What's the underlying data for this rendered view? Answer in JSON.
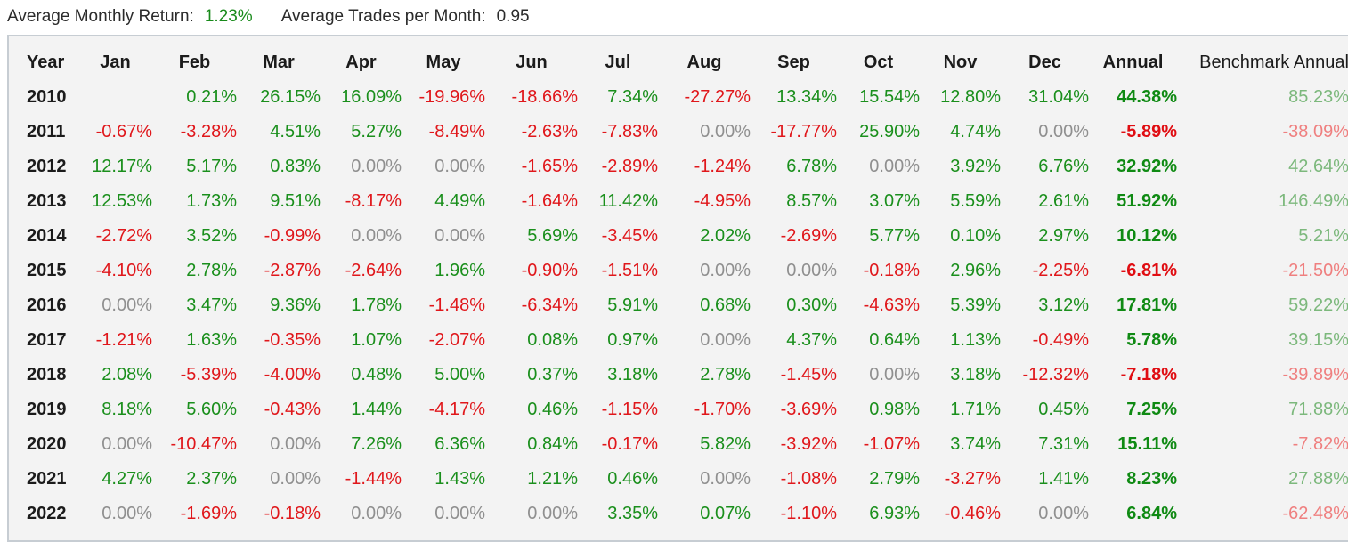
{
  "summary": {
    "avg_monthly_return_label": "Average Monthly Return:",
    "avg_monthly_return_value": "1.23%",
    "avg_trades_label": "Average Trades per Month:",
    "avg_trades_value": "0.95"
  },
  "table": {
    "headers": [
      "Year",
      "Jan",
      "Feb",
      "Mar",
      "Apr",
      "May",
      "Jun",
      "Jul",
      "Aug",
      "Sep",
      "Oct",
      "Nov",
      "Dec",
      "Annual",
      "Benchmark Annual"
    ],
    "rows": [
      {
        "year": "2010",
        "months": [
          "",
          "0.21%",
          "26.15%",
          "16.09%",
          "-19.96%",
          "-18.66%",
          "7.34%",
          "-27.27%",
          "13.34%",
          "15.54%",
          "12.80%",
          "31.04%"
        ],
        "annual": "44.38%",
        "benchmark": "85.23%"
      },
      {
        "year": "2011",
        "months": [
          "-0.67%",
          "-3.28%",
          "4.51%",
          "5.27%",
          "-8.49%",
          "-2.63%",
          "-7.83%",
          "0.00%",
          "-17.77%",
          "25.90%",
          "4.74%",
          "0.00%"
        ],
        "annual": "-5.89%",
        "benchmark": "-38.09%"
      },
      {
        "year": "2012",
        "months": [
          "12.17%",
          "5.17%",
          "0.83%",
          "0.00%",
          "0.00%",
          "-1.65%",
          "-2.89%",
          "-1.24%",
          "6.78%",
          "0.00%",
          "3.92%",
          "6.76%"
        ],
        "annual": "32.92%",
        "benchmark": "42.64%"
      },
      {
        "year": "2013",
        "months": [
          "12.53%",
          "1.73%",
          "9.51%",
          "-8.17%",
          "4.49%",
          "-1.64%",
          "11.42%",
          "-4.95%",
          "8.57%",
          "3.07%",
          "5.59%",
          "2.61%"
        ],
        "annual": "51.92%",
        "benchmark": "146.49%"
      },
      {
        "year": "2014",
        "months": [
          "-2.72%",
          "3.52%",
          "-0.99%",
          "0.00%",
          "0.00%",
          "5.69%",
          "-3.45%",
          "2.02%",
          "-2.69%",
          "5.77%",
          "0.10%",
          "2.97%"
        ],
        "annual": "10.12%",
        "benchmark": "5.21%"
      },
      {
        "year": "2015",
        "months": [
          "-4.10%",
          "2.78%",
          "-2.87%",
          "-2.64%",
          "1.96%",
          "-0.90%",
          "-1.51%",
          "0.00%",
          "0.00%",
          "-0.18%",
          "2.96%",
          "-2.25%"
        ],
        "annual": "-6.81%",
        "benchmark": "-21.50%"
      },
      {
        "year": "2016",
        "months": [
          "0.00%",
          "3.47%",
          "9.36%",
          "1.78%",
          "-1.48%",
          "-6.34%",
          "5.91%",
          "0.68%",
          "0.30%",
          "-4.63%",
          "5.39%",
          "3.12%"
        ],
        "annual": "17.81%",
        "benchmark": "59.22%"
      },
      {
        "year": "2017",
        "months": [
          "-1.21%",
          "1.63%",
          "-0.35%",
          "1.07%",
          "-2.07%",
          "0.08%",
          "0.97%",
          "0.00%",
          "4.37%",
          "0.64%",
          "1.13%",
          "-0.49%"
        ],
        "annual": "5.78%",
        "benchmark": "39.15%"
      },
      {
        "year": "2018",
        "months": [
          "2.08%",
          "-5.39%",
          "-4.00%",
          "0.48%",
          "5.00%",
          "0.37%",
          "3.18%",
          "2.78%",
          "-1.45%",
          "0.00%",
          "3.18%",
          "-12.32%"
        ],
        "annual": "-7.18%",
        "benchmark": "-39.89%"
      },
      {
        "year": "2019",
        "months": [
          "8.18%",
          "5.60%",
          "-0.43%",
          "1.44%",
          "-4.17%",
          "0.46%",
          "-1.15%",
          "-1.70%",
          "-3.69%",
          "0.98%",
          "1.71%",
          "0.45%"
        ],
        "annual": "7.25%",
        "benchmark": "71.88%"
      },
      {
        "year": "2020",
        "months": [
          "0.00%",
          "-10.47%",
          "0.00%",
          "7.26%",
          "6.36%",
          "0.84%",
          "-0.17%",
          "5.82%",
          "-3.92%",
          "-1.07%",
          "3.74%",
          "7.31%"
        ],
        "annual": "15.11%",
        "benchmark": "-7.82%"
      },
      {
        "year": "2021",
        "months": [
          "4.27%",
          "2.37%",
          "0.00%",
          "-1.44%",
          "1.43%",
          "1.21%",
          "0.46%",
          "0.00%",
          "-1.08%",
          "2.79%",
          "-3.27%",
          "1.41%"
        ],
        "annual": "8.23%",
        "benchmark": "27.88%"
      },
      {
        "year": "2022",
        "months": [
          "0.00%",
          "-1.69%",
          "-0.18%",
          "0.00%",
          "0.00%",
          "0.00%",
          "3.35%",
          "0.07%",
          "-1.10%",
          "6.93%",
          "-0.46%",
          "0.00%"
        ],
        "annual": "6.84%",
        "benchmark": "-62.48%"
      }
    ]
  },
  "colors": {
    "positive": "#1a8f1c",
    "negative": "#e0171b",
    "zero": "#8f8f8f",
    "benchmark_positive": "#7cb87c",
    "benchmark_negative": "#ef7f7f",
    "panel_background": "#f3f3f3"
  }
}
